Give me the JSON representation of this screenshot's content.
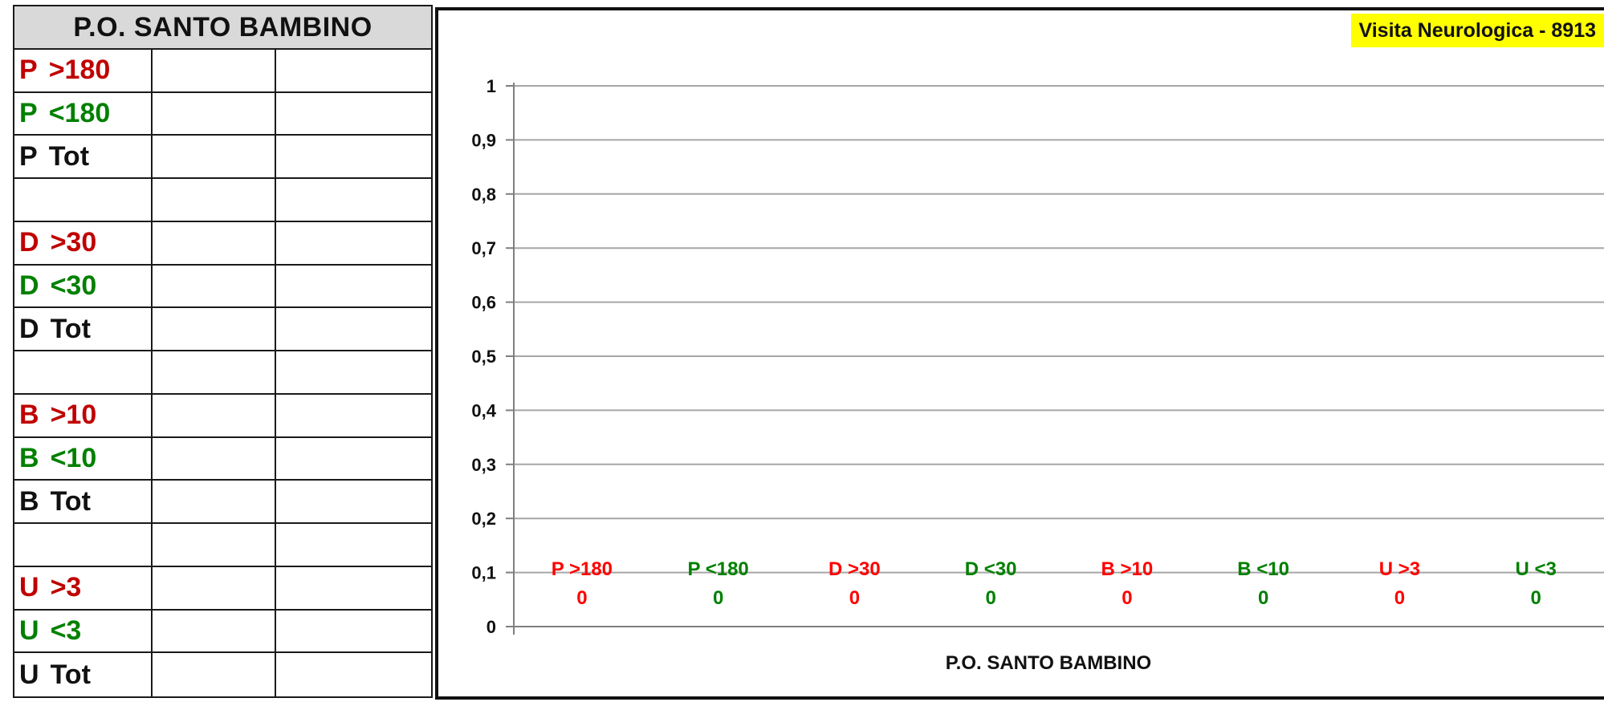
{
  "table": {
    "header": "P.O. SANTO BAMBINO",
    "rows": [
      {
        "prefix": "P",
        "label": ">180",
        "color": "red"
      },
      {
        "prefix": "P",
        "label": "<180",
        "color": "green"
      },
      {
        "prefix": "P",
        "label": "Tot",
        "color": "black"
      },
      {
        "prefix": "",
        "label": "",
        "color": "black"
      },
      {
        "prefix": "D",
        "label": ">30",
        "color": "red"
      },
      {
        "prefix": "D",
        "label": "<30",
        "color": "green"
      },
      {
        "prefix": "D",
        "label": "Tot",
        "color": "black"
      },
      {
        "prefix": "",
        "label": "",
        "color": "black"
      },
      {
        "prefix": "B",
        "label": ">10",
        "color": "red"
      },
      {
        "prefix": "B",
        "label": "<10",
        "color": "green"
      },
      {
        "prefix": "B",
        "label": "Tot",
        "color": "black"
      },
      {
        "prefix": "",
        "label": "",
        "color": "black"
      },
      {
        "prefix": "U",
        "label": ">3",
        "color": "red"
      },
      {
        "prefix": "U",
        "label": "<3",
        "color": "green"
      },
      {
        "prefix": "U",
        "label": "Tot",
        "color": "black"
      }
    ]
  },
  "badge": "Visita Neurologica - 8913",
  "colors": {
    "red_label": "#ff0000",
    "green_label": "#008000",
    "table_red": "#c00000",
    "table_green": "#008000",
    "badge_bg": "#ffff00",
    "grid": "#a6a6a6"
  },
  "chart_data": {
    "type": "bar",
    "xlabel": "P.O. SANTO BAMBINO",
    "ylabel": "",
    "ylim": [
      0,
      1
    ],
    "yticks": [
      "0",
      "0,1",
      "0,2",
      "0,3",
      "0,4",
      "0,5",
      "0,6",
      "0,7",
      "0,8",
      "0,9",
      "1"
    ],
    "grid": true,
    "categories": [
      "P >180",
      "P <180",
      "D >30",
      "D <30",
      "B >10",
      "B <10",
      "U >3",
      "U <3"
    ],
    "values": [
      0,
      0,
      0,
      0,
      0,
      0,
      0,
      0
    ],
    "value_labels": [
      "0",
      "0",
      "0",
      "0",
      "0",
      "0",
      "0",
      "0"
    ],
    "category_colors": [
      "red",
      "green",
      "red",
      "green",
      "red",
      "green",
      "red",
      "green"
    ]
  }
}
